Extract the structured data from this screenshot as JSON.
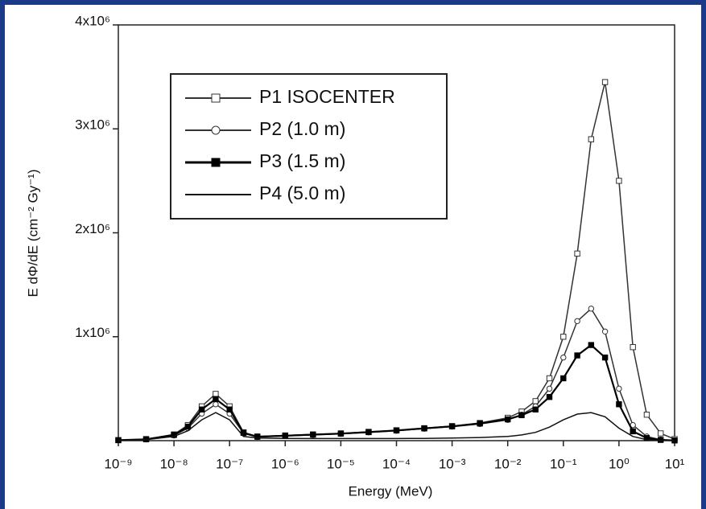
{
  "chart_data": {
    "type": "line",
    "xlabel": "Energy (MeV)",
    "ylabel": "E dΦ/dE (cm⁻² Gy⁻¹)",
    "x_log": true,
    "x": [
      1e-09,
      3.16e-09,
      1e-08,
      1.78e-08,
      3.16e-08,
      5.62e-08,
      1e-07,
      1.78e-07,
      3.16e-07,
      1e-06,
      3.16e-06,
      1e-05,
      3.16e-05,
      0.0001,
      0.000316,
      0.001,
      0.00316,
      0.01,
      0.0178,
      0.0316,
      0.0562,
      0.1,
      0.178,
      0.316,
      0.562,
      1,
      1.78,
      3.16,
      5.62,
      10
    ],
    "series": [
      {
        "name": "P1 ISOCENTER",
        "color": "#333333",
        "marker": "square-open",
        "values": [
          5000,
          15000,
          60000,
          150000,
          330000,
          450000,
          330000,
          80000,
          40000,
          50000,
          60000,
          70000,
          85000,
          100000,
          120000,
          140000,
          170000,
          220000,
          280000,
          380000,
          600000,
          1000000,
          1800000,
          2900000,
          3450000,
          2500000,
          900000,
          250000,
          70000,
          15000
        ]
      },
      {
        "name": "P2 (1.0 m)",
        "color": "#333333",
        "marker": "circle-open",
        "values": [
          4000,
          12000,
          50000,
          120000,
          260000,
          350000,
          260000,
          70000,
          35000,
          45000,
          55000,
          65000,
          80000,
          95000,
          115000,
          135000,
          160000,
          200000,
          250000,
          330000,
          500000,
          800000,
          1150000,
          1270000,
          1050000,
          500000,
          150000,
          40000,
          10000,
          3000
        ]
      },
      {
        "name": "P3 (1.5 m)",
        "color": "#000000",
        "marker": "square-filled",
        "values": [
          4500,
          13000,
          55000,
          135000,
          300000,
          400000,
          300000,
          75000,
          38000,
          48000,
          58000,
          68000,
          82000,
          98000,
          118000,
          138000,
          165000,
          205000,
          245000,
          300000,
          420000,
          600000,
          820000,
          920000,
          800000,
          350000,
          90000,
          25000,
          7000,
          2000
        ]
      },
      {
        "name": "P4 (5.0 m)",
        "color": "#111111",
        "marker": "none",
        "values": [
          3000,
          9000,
          40000,
          95000,
          200000,
          270000,
          200000,
          40000,
          25000,
          22000,
          20000,
          20000,
          20000,
          20000,
          22000,
          25000,
          30000,
          40000,
          55000,
          80000,
          130000,
          200000,
          255000,
          270000,
          230000,
          120000,
          40000,
          10000,
          3000,
          1000
        ]
      }
    ],
    "xlim": [
      1e-09,
      10
    ],
    "xticks": [
      {
        "value": 1e-09,
        "label": "10⁻⁹"
      },
      {
        "value": 1e-08,
        "label": "10⁻⁸"
      },
      {
        "value": 1e-07,
        "label": "10⁻⁷"
      },
      {
        "value": 1e-06,
        "label": "10⁻⁶"
      },
      {
        "value": 1e-05,
        "label": "10⁻⁵"
      },
      {
        "value": 0.0001,
        "label": "10⁻⁴"
      },
      {
        "value": 0.001,
        "label": "10⁻³"
      },
      {
        "value": 0.01,
        "label": "10⁻²"
      },
      {
        "value": 0.1,
        "label": "10⁻¹"
      },
      {
        "value": 1,
        "label": "10⁰"
      },
      {
        "value": 10,
        "label": "10¹"
      }
    ],
    "ylim": [
      0,
      4000000
    ],
    "yticks": [
      {
        "value": 1000000,
        "label": "1x10⁶"
      },
      {
        "value": 2000000,
        "label": "2x10⁶"
      },
      {
        "value": 3000000,
        "label": "3x10⁶"
      },
      {
        "value": 4000000,
        "label": "4x10⁶"
      }
    ],
    "legend": "upper-left"
  }
}
